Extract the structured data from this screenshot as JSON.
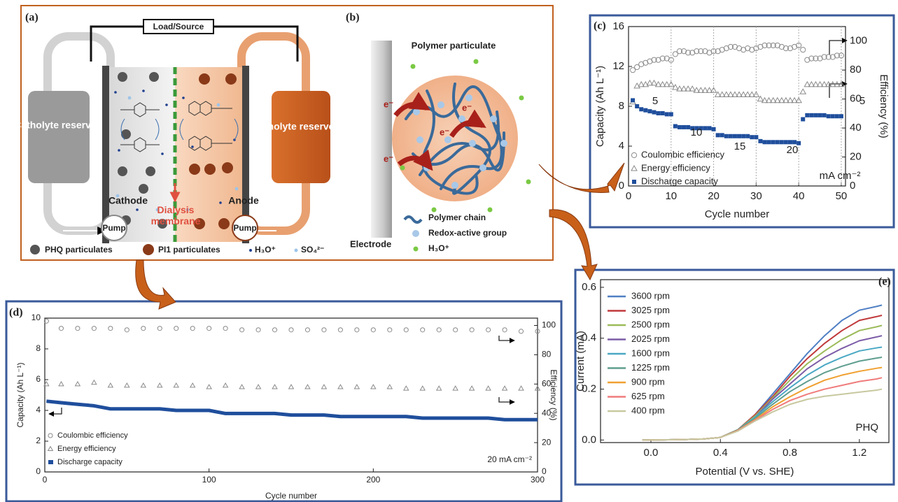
{
  "panel_a": {
    "label": "(a)",
    "load": "Load/Source",
    "catholyte": "Catholyte reservoir",
    "anolyte": "Anolyte reservoir",
    "cathode": "Cathode",
    "anode": "Anode",
    "membrane": "Dialysis membrane",
    "pumps": [
      "Pump",
      "Pump"
    ],
    "legend": [
      "PHQ particulates",
      "PI1 particulates",
      "H₃O⁺",
      "SO₄²⁻"
    ]
  },
  "panel_b": {
    "label": "(b)",
    "title": "Polymer particulate",
    "electrode": "Electrode",
    "electrons": [
      "e⁻",
      "e⁻",
      "e⁻",
      "e⁻"
    ],
    "legend": [
      "Polymer chain",
      "Redox-active group",
      "H₃O⁺"
    ]
  },
  "chart_data": [
    {
      "type": "scatter",
      "label": "(c)",
      "xlabel": "Cycle number",
      "ylabel": "Capacity (Ah L⁻¹)",
      "y2label": "Efficiency (%)",
      "x": [
        1,
        2,
        3,
        4,
        5,
        6,
        7,
        8,
        9,
        10,
        11,
        12,
        13,
        14,
        15,
        16,
        17,
        18,
        19,
        20,
        21,
        22,
        23,
        24,
        25,
        26,
        27,
        28,
        29,
        30,
        31,
        32,
        33,
        34,
        35,
        36,
        37,
        38,
        39,
        40,
        41,
        42,
        43,
        44,
        45,
        46,
        47,
        48,
        49,
        50
      ],
      "xlim": [
        0,
        51
      ],
      "xticks": [
        0,
        10,
        20,
        30,
        40,
        50
      ],
      "xgrid": true,
      "ylim": [
        0,
        16
      ],
      "yticks": [
        0,
        4,
        8,
        12,
        16
      ],
      "y2lim": [
        0,
        110
      ],
      "y2ticks": [
        0,
        20,
        40,
        60,
        80,
        100
      ],
      "legend": "lower left",
      "series": [
        {
          "name": "Coulombic efficiency",
          "color": "#8a8a8a",
          "marker": "circle",
          "axis": "y2",
          "values": [
            80,
            82,
            84,
            85,
            86,
            87,
            87,
            88,
            88,
            87,
            91,
            93,
            93,
            92,
            92,
            93,
            93,
            93,
            92,
            93,
            93,
            94,
            95,
            96,
            96,
            95,
            94,
            95,
            94,
            95,
            96,
            97,
            97,
            97,
            97,
            96,
            95,
            95,
            96,
            97,
            94,
            87,
            88,
            88,
            88,
            89,
            89,
            89,
            90,
            90
          ]
        },
        {
          "name": "Energy efficiency",
          "color": "#8a8a8a",
          "marker": "triangle",
          "axis": "y2",
          "values": [
            58,
            69,
            70,
            70,
            71,
            71,
            70,
            70,
            70,
            70,
            68,
            67,
            67,
            67,
            67,
            66,
            66,
            66,
            66,
            66,
            63,
            63,
            63,
            63,
            63,
            63,
            63,
            63,
            63,
            63,
            60,
            59,
            59,
            59,
            59,
            59,
            59,
            59,
            59,
            59,
            65,
            70,
            70,
            70,
            70,
            70,
            70,
            70,
            70,
            70
          ]
        },
        {
          "name": "Discharge capacity",
          "color": "#1f4e9c",
          "marker": "square",
          "values": [
            8.6,
            8.0,
            7.7,
            7.6,
            7.5,
            7.4,
            7.3,
            7.3,
            7.2,
            7.2,
            6.0,
            5.9,
            5.9,
            5.9,
            5.8,
            5.8,
            5.8,
            5.8,
            5.8,
            5.7,
            5.1,
            5.1,
            5.0,
            5.0,
            5.0,
            5.0,
            5.0,
            5.0,
            4.9,
            4.9,
            4.5,
            4.4,
            4.4,
            4.4,
            4.4,
            4.4,
            4.4,
            4.4,
            4.4,
            4.3,
            6.7,
            7.1,
            7.1,
            7.1,
            7.1,
            7.1,
            7.0,
            7.0,
            7.0,
            7.0
          ]
        }
      ],
      "annotations": [
        "5",
        "10",
        "15",
        "20",
        "5",
        "mA cm⁻²"
      ]
    },
    {
      "type": "scatter",
      "label": "(d)",
      "xlabel": "Cycle number",
      "ylabel": "Capacity (Ah L⁻¹)",
      "y2label": "Efficiency (%)",
      "x": [
        1,
        10,
        20,
        30,
        40,
        50,
        60,
        70,
        80,
        90,
        100,
        110,
        120,
        130,
        140,
        150,
        160,
        170,
        180,
        190,
        200,
        210,
        220,
        230,
        240,
        250,
        260,
        270,
        280,
        290,
        300
      ],
      "xlim": [
        0,
        300
      ],
      "xticks": [
        0,
        100,
        200,
        300
      ],
      "ylim": [
        0,
        10
      ],
      "yticks": [
        0,
        2,
        4,
        6,
        8,
        10
      ],
      "y2lim": [
        0,
        105
      ],
      "y2ticks": [
        0,
        20,
        40,
        60,
        80,
        100
      ],
      "legend": "lower left",
      "series": [
        {
          "name": "Coulombic efficiency",
          "color": "#8a8a8a",
          "marker": "circle",
          "axis": "y2",
          "values": [
            103,
            98,
            98,
            98,
            98,
            97,
            98,
            98,
            98,
            98,
            98,
            98,
            97,
            97,
            97,
            97,
            97,
            97,
            97,
            97,
            97,
            97,
            97,
            97,
            97,
            97,
            97,
            97,
            97,
            96,
            96
          ]
        },
        {
          "name": "Energy efficiency",
          "color": "#8a8a8a",
          "marker": "triangle",
          "axis": "y2",
          "values": [
            60,
            60,
            60,
            61,
            59,
            59,
            59,
            59,
            59,
            59,
            58,
            59,
            58,
            58,
            58,
            58,
            58,
            58,
            58,
            58,
            58,
            58,
            57,
            57,
            57,
            57,
            57,
            57,
            57,
            57,
            57
          ]
        },
        {
          "name": "Discharge capacity",
          "color": "#1f4e9c",
          "marker": "line",
          "values": [
            4.6,
            4.5,
            4.4,
            4.3,
            4.1,
            4.1,
            4.1,
            4.1,
            4.0,
            4.0,
            4.0,
            3.8,
            3.8,
            3.8,
            3.8,
            3.7,
            3.7,
            3.7,
            3.6,
            3.6,
            3.6,
            3.6,
            3.6,
            3.5,
            3.5,
            3.5,
            3.5,
            3.5,
            3.4,
            3.4,
            3.4
          ]
        }
      ],
      "annotations": [
        "20 mA cm⁻²"
      ]
    },
    {
      "type": "line",
      "label": "(e)",
      "xlabel": "Potential (V vs. SHE)",
      "ylabel": "Current  (mA)",
      "x": [
        -0.05,
        0.1,
        0.2,
        0.3,
        0.4,
        0.5,
        0.6,
        0.7,
        0.8,
        0.9,
        1.0,
        1.1,
        1.2,
        1.3,
        1.33
      ],
      "xlim": [
        -0.29,
        1.37
      ],
      "xticks": [
        {
          "value": 0,
          "label": "0.0"
        },
        0.4,
        0.8,
        1.2
      ],
      "ylim": [
        -0.01,
        0.63
      ],
      "yticks": [
        {
          "value": 0,
          "label": "0.0"
        },
        0.2,
        0.4,
        0.6
      ],
      "legend": "upper left",
      "series": [
        {
          "name": "3600 rpm",
          "color": "#4f7fc4",
          "values": [
            0,
            0.001,
            0.002,
            0.004,
            0.01,
            0.04,
            0.1,
            0.18,
            0.26,
            0.34,
            0.41,
            0.47,
            0.51,
            0.525,
            0.53
          ]
        },
        {
          "name": "3025 rpm",
          "color": "#c0393b",
          "values": [
            0,
            0.001,
            0.002,
            0.004,
            0.01,
            0.04,
            0.1,
            0.17,
            0.25,
            0.32,
            0.38,
            0.43,
            0.47,
            0.485,
            0.49
          ]
        },
        {
          "name": "2500 rpm",
          "color": "#9bbb59",
          "values": [
            0,
            0.001,
            0.002,
            0.004,
            0.01,
            0.04,
            0.095,
            0.165,
            0.235,
            0.3,
            0.35,
            0.395,
            0.43,
            0.445,
            0.45
          ]
        },
        {
          "name": "2025 rpm",
          "color": "#7c5ca8",
          "values": [
            0,
            0.001,
            0.002,
            0.004,
            0.01,
            0.04,
            0.09,
            0.16,
            0.22,
            0.28,
            0.325,
            0.36,
            0.39,
            0.405,
            0.41
          ]
        },
        {
          "name": "1600 rpm",
          "color": "#4aa8c4",
          "values": [
            0,
            0.001,
            0.002,
            0.004,
            0.01,
            0.04,
            0.09,
            0.15,
            0.205,
            0.255,
            0.295,
            0.325,
            0.35,
            0.362,
            0.365
          ]
        },
        {
          "name": "1225 rpm",
          "color": "#5f9e8f",
          "values": [
            0,
            0.001,
            0.002,
            0.004,
            0.01,
            0.04,
            0.085,
            0.14,
            0.19,
            0.23,
            0.265,
            0.29,
            0.31,
            0.322,
            0.325
          ]
        },
        {
          "name": "900 rpm",
          "color": "#f0a030",
          "values": [
            0,
            0.001,
            0.002,
            0.004,
            0.01,
            0.038,
            0.08,
            0.13,
            0.17,
            0.205,
            0.235,
            0.255,
            0.27,
            0.282,
            0.285
          ]
        },
        {
          "name": "625 rpm",
          "color": "#f07c7c",
          "values": [
            0,
            0.001,
            0.002,
            0.004,
            0.01,
            0.037,
            0.078,
            0.12,
            0.155,
            0.18,
            0.2,
            0.215,
            0.23,
            0.24,
            0.245
          ]
        },
        {
          "name": "400 rpm",
          "color": "#c8c8a0",
          "values": [
            0,
            0.001,
            0.002,
            0.004,
            0.01,
            0.035,
            0.075,
            0.11,
            0.14,
            0.16,
            0.172,
            0.18,
            0.188,
            0.196,
            0.2
          ]
        }
      ],
      "annotations": [
        "PHQ"
      ]
    }
  ]
}
